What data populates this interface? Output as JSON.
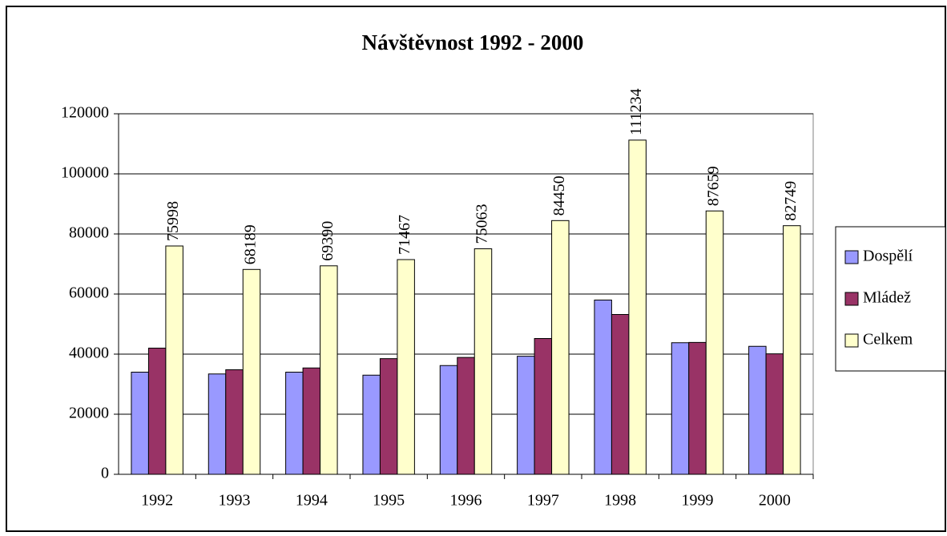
{
  "chart_data": {
    "type": "bar",
    "title": "Návštěvnost 1992 - 2000",
    "categories": [
      "1992",
      "1993",
      "1994",
      "1995",
      "1996",
      "1997",
      "1998",
      "1999",
      "2000"
    ],
    "series": [
      {
        "name": "Dospělí",
        "color": "#9999ff",
        "values": [
          34000,
          33400,
          34000,
          33000,
          36200,
          39300,
          58000,
          43800,
          42600
        ]
      },
      {
        "name": "Mládež",
        "color": "#993366",
        "values": [
          42000,
          34800,
          35400,
          38500,
          38900,
          45200,
          53200,
          43900,
          40100
        ]
      },
      {
        "name": "Celkem",
        "color": "#ffffcc",
        "values": [
          75998,
          68189,
          69390,
          71467,
          75063,
          84450,
          111234,
          87659,
          82749
        ],
        "data_labels": true
      }
    ],
    "ylim": [
      0,
      120000
    ],
    "yticks": [
      0,
      20000,
      40000,
      60000,
      80000,
      100000,
      120000
    ],
    "grid": true,
    "legend": "right"
  }
}
